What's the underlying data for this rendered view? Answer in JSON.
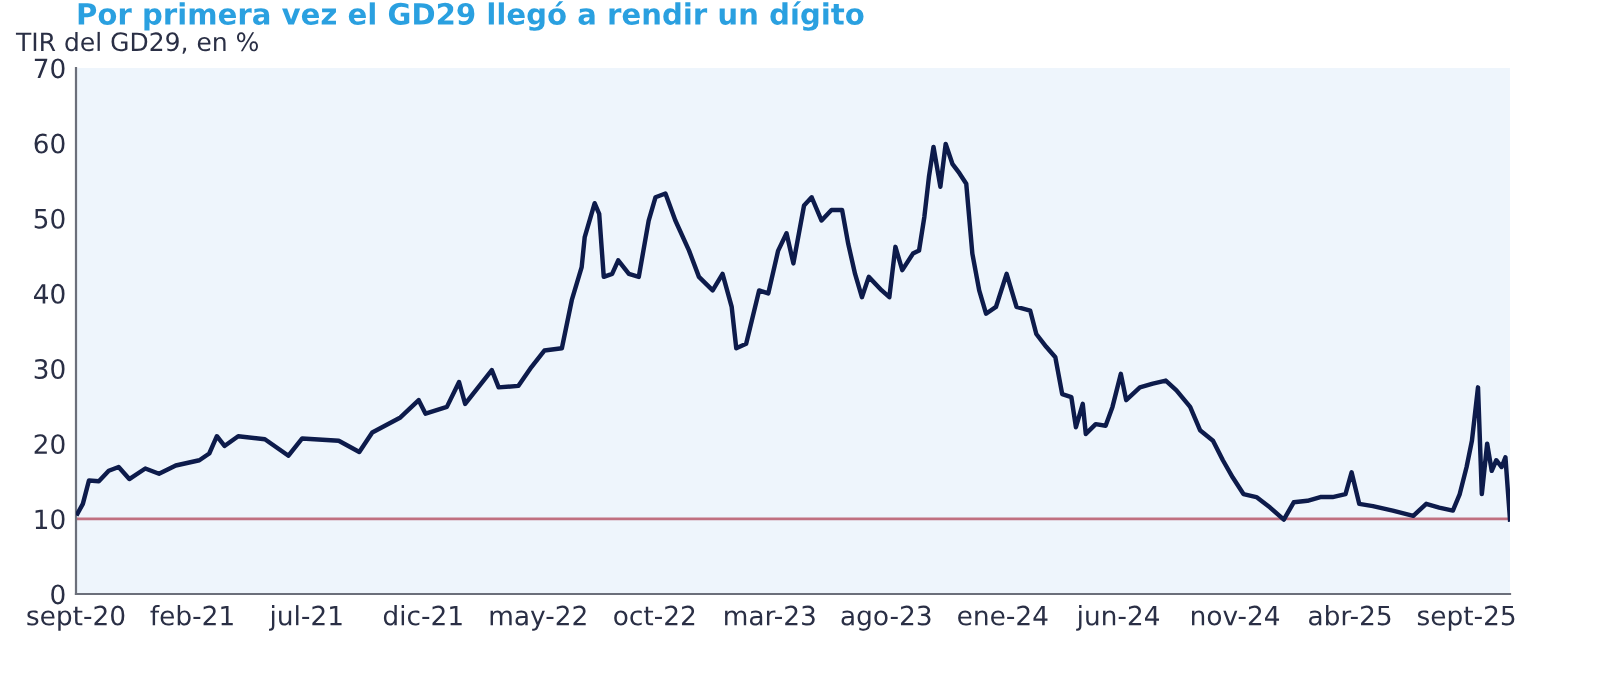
{
  "chart_data": {
    "type": "line",
    "title": "Por primera vez el GD29 llegó a rendir un dígito",
    "subtitle": "TIR del GD29, en %",
    "x": [
      "2020-09-03",
      "2020-09-10",
      "2020-09-18",
      "2020-10-01",
      "2020-10-14",
      "2020-10-27",
      "2020-11-10",
      "2020-12-01",
      "2020-12-19",
      "2021-01-10",
      "2021-02-10",
      "2021-02-23",
      "2021-03-05",
      "2021-03-15",
      "2021-04-02",
      "2021-05-07",
      "2021-06-07",
      "2021-06-25",
      "2021-08-12",
      "2021-09-08",
      "2021-09-25",
      "2021-11-01",
      "2021-11-25",
      "2021-12-04",
      "2022-01-01",
      "2022-01-17",
      "2022-01-25",
      "2022-03-01",
      "2022-03-10",
      "2022-04-05",
      "2022-04-22",
      "2022-05-09",
      "2022-06-01",
      "2022-06-14",
      "2022-06-27",
      "2022-07-01",
      "2022-07-14",
      "2022-07-20",
      "2022-07-26",
      "2022-08-06",
      "2022-08-14",
      "2022-08-28",
      "2022-09-10",
      "2022-09-23",
      "2022-10-02",
      "2022-10-15",
      "2022-10-28",
      "2022-11-15",
      "2022-11-28",
      "2022-12-16",
      "2022-12-29",
      "2023-01-10",
      "2023-01-16",
      "2023-01-29",
      "2023-02-15",
      "2023-02-27",
      "2023-03-12",
      "2023-03-23",
      "2023-04-01",
      "2023-04-15",
      "2023-04-25",
      "2023-05-08",
      "2023-05-21",
      "2023-06-04",
      "2023-06-12",
      "2023-06-21",
      "2023-06-30",
      "2023-07-09",
      "2023-07-26",
      "2023-08-05",
      "2023-08-13",
      "2023-08-22",
      "2023-09-05",
      "2023-09-13",
      "2023-09-20",
      "2023-09-26",
      "2023-10-02",
      "2023-10-11",
      "2023-10-18",
      "2023-10-27",
      "2023-11-05",
      "2023-11-14",
      "2023-11-22",
      "2023-12-01",
      "2023-12-10",
      "2023-12-23",
      "2024-01-06",
      "2024-01-19",
      "2024-02-06",
      "2024-02-14",
      "2024-02-27",
      "2024-03-10",
      "2024-03-19",
      "2024-03-31",
      "2024-04-06",
      "2024-04-15",
      "2024-04-19",
      "2024-05-02",
      "2024-05-15",
      "2024-05-24",
      "2024-06-04",
      "2024-06-11",
      "2024-06-29",
      "2024-07-16",
      "2024-08-02",
      "2024-08-16",
      "2024-09-03",
      "2024-09-16",
      "2024-10-03",
      "2024-10-16",
      "2024-10-29",
      "2024-11-12",
      "2024-11-29",
      "2024-12-17",
      "2025-01-04",
      "2025-01-17",
      "2025-02-04",
      "2025-02-21",
      "2025-03-09",
      "2025-03-26",
      "2025-04-03",
      "2025-04-13",
      "2025-05-01",
      "2025-05-27",
      "2025-06-23",
      "2025-07-10",
      "2025-07-27",
      "2025-08-14",
      "2025-08-23",
      "2025-09-01",
      "2025-09-08",
      "2025-09-16",
      "2025-09-21",
      "2025-09-28",
      "2025-10-04",
      "2025-10-10",
      "2025-10-17",
      "2025-10-22",
      "2025-10-28"
    ],
    "series": [
      {
        "color": "#0d1b4b",
        "values": [
          10.7,
          12,
          15.1,
          15,
          16.4,
          16.9,
          15.3,
          16.7,
          16,
          17.1,
          17.8,
          18.7,
          21,
          19.7,
          21,
          20.6,
          18.4,
          20.7,
          20.4,
          18.9,
          21.5,
          23.5,
          25.8,
          24,
          24.9,
          28.2,
          25.3,
          29.8,
          27.5,
          27.7,
          30.2,
          32.4,
          32.7,
          39.1,
          43.5,
          47.5,
          52,
          50.6,
          42.2,
          42.6,
          44.4,
          42.6,
          42.2,
          49.7,
          52.8,
          53.3,
          49.7,
          45.7,
          42.2,
          40.4,
          42.6,
          38.2,
          32.7,
          33.3,
          40.4,
          40,
          45.7,
          48,
          44,
          51.7,
          52.8,
          49.7,
          51.1,
          51.1,
          46.6,
          42.6,
          39.5,
          42.2,
          40.4,
          39.5,
          46.2,
          43.1,
          45.3,
          45.7,
          50.2,
          55.5,
          59.5,
          54.2,
          59.9,
          57.2,
          56,
          54.6,
          45.3,
          40.4,
          37.3,
          38.2,
          42.6,
          38.2,
          37.7,
          34.6,
          32.9,
          31.5,
          26.6,
          26.2,
          22.2,
          25.3,
          21.3,
          22.6,
          22.4,
          24.9,
          29.3,
          25.8,
          27.5,
          28,
          28.4,
          27.1,
          24.9,
          21.8,
          20.4,
          17.8,
          15.5,
          13.3,
          12.9,
          11.5,
          9.9,
          12.2,
          12.4,
          12.9,
          12.9,
          13.3,
          16.2,
          12,
          11.7,
          11.1,
          10.4,
          12,
          11.5,
          11.1,
          13.3,
          16.9,
          20.4,
          27.5,
          13.3,
          20,
          16.4,
          17.8,
          16.9,
          18.2,
          9.9
        ]
      }
    ],
    "xlim": [
      "2020-09-01",
      "2025-10-28"
    ],
    "xticks": [
      {
        "value": "2020-09-01",
        "label": "sept-20"
      },
      {
        "value": "2021-02-01",
        "label": "feb-21"
      },
      {
        "value": "2021-07-01",
        "label": "jul-21"
      },
      {
        "value": "2021-12-01",
        "label": "dic-21"
      },
      {
        "value": "2022-05-01",
        "label": "may-22"
      },
      {
        "value": "2022-10-01",
        "label": "oct-22"
      },
      {
        "value": "2023-03-01",
        "label": "mar-23"
      },
      {
        "value": "2023-08-01",
        "label": "ago-23"
      },
      {
        "value": "2024-01-01",
        "label": "ene-24"
      },
      {
        "value": "2024-06-01",
        "label": "jun-24"
      },
      {
        "value": "2024-11-01",
        "label": "nov-24"
      },
      {
        "value": "2025-04-01",
        "label": "abr-25"
      },
      {
        "value": "2025-09-01",
        "label": "sept-25"
      }
    ],
    "ylim": [
      0,
      70
    ],
    "yticks": [
      0,
      10,
      20,
      30,
      40,
      50,
      60,
      70
    ],
    "ref_lines": [
      {
        "axis": "y",
        "value": 10,
        "color": "#c07080"
      }
    ],
    "grid": false,
    "legend": false,
    "marker": "none",
    "line_style": "solid"
  }
}
